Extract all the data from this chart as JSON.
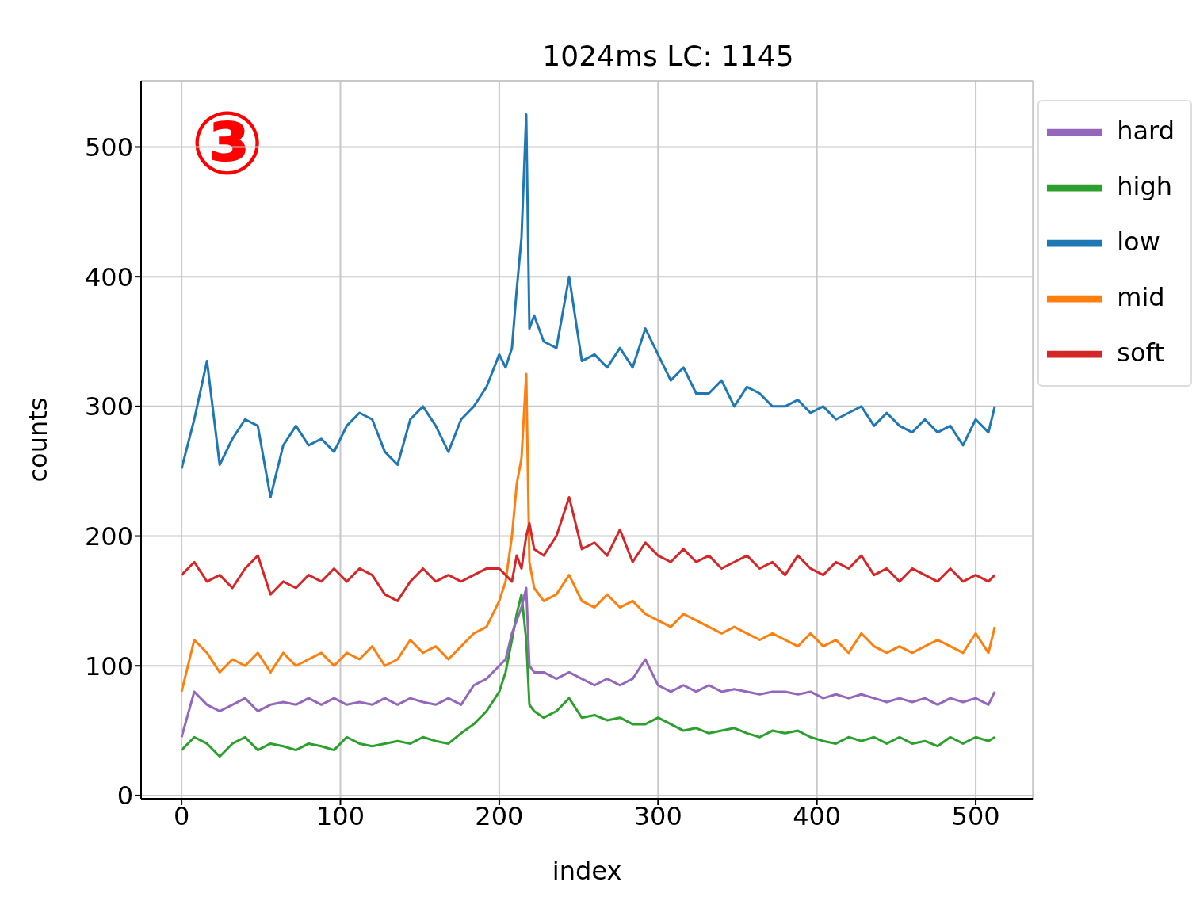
{
  "chart_data": {
    "type": "line",
    "title": "1024ms LC: 1145",
    "xlabel": "index",
    "ylabel": "counts",
    "annotations": [
      "③"
    ],
    "x": [
      0,
      8,
      16,
      24,
      32,
      40,
      48,
      56,
      64,
      72,
      80,
      88,
      96,
      104,
      112,
      120,
      128,
      136,
      144,
      152,
      160,
      168,
      176,
      184,
      192,
      200,
      204,
      208,
      211,
      214,
      217,
      219,
      222,
      228,
      236,
      244,
      252,
      260,
      268,
      276,
      284,
      292,
      300,
      308,
      316,
      324,
      332,
      340,
      348,
      356,
      364,
      372,
      380,
      388,
      396,
      404,
      412,
      420,
      428,
      436,
      444,
      452,
      460,
      468,
      476,
      484,
      492,
      500,
      508,
      512
    ],
    "xlim": [
      -25.5,
      536
    ],
    "xticks": [
      0,
      100,
      200,
      300,
      400,
      500
    ],
    "ylim": [
      -2.5,
      551
    ],
    "yticks": [
      0,
      100,
      200,
      300,
      400,
      500
    ],
    "grid": true,
    "legend": "top right",
    "marker": "none",
    "line_style": "solid",
    "series": [
      {
        "name": "low",
        "color": "#1f77b4",
        "values": [
          252,
          290,
          335,
          255,
          275,
          290,
          285,
          230,
          270,
          285,
          270,
          275,
          265,
          285,
          295,
          290,
          265,
          255,
          290,
          300,
          285,
          265,
          290,
          300,
          315,
          340,
          330,
          345,
          390,
          430,
          525,
          360,
          370,
          350,
          345,
          400,
          335,
          340,
          330,
          345,
          330,
          360,
          340,
          320,
          330,
          310,
          310,
          320,
          300,
          315,
          310,
          300,
          300,
          305,
          295,
          300,
          290,
          295,
          300,
          285,
          295,
          285,
          280,
          290,
          280,
          285,
          270,
          290,
          280,
          300
        ]
      },
      {
        "name": "mid",
        "color": "#ff7f0e",
        "values": [
          80,
          120,
          110,
          95,
          105,
          100,
          110,
          95,
          110,
          100,
          105,
          110,
          100,
          110,
          105,
          115,
          100,
          105,
          120,
          110,
          115,
          105,
          115,
          125,
          130,
          150,
          165,
          200,
          240,
          260,
          325,
          180,
          160,
          150,
          155,
          170,
          150,
          145,
          155,
          145,
          150,
          140,
          135,
          130,
          140,
          135,
          130,
          125,
          130,
          125,
          120,
          125,
          120,
          115,
          125,
          115,
          120,
          110,
          125,
          115,
          110,
          115,
          110,
          115,
          120,
          115,
          110,
          125,
          110,
          130
        ]
      },
      {
        "name": "high",
        "color": "#2ca02c",
        "values": [
          35,
          45,
          40,
          30,
          40,
          45,
          35,
          40,
          38,
          35,
          40,
          38,
          35,
          45,
          40,
          38,
          40,
          42,
          40,
          45,
          42,
          40,
          48,
          55,
          65,
          80,
          95,
          120,
          140,
          155,
          120,
          70,
          65,
          60,
          65,
          75,
          60,
          62,
          58,
          60,
          55,
          55,
          60,
          55,
          50,
          52,
          48,
          50,
          52,
          48,
          45,
          50,
          48,
          50,
          45,
          42,
          40,
          45,
          42,
          45,
          40,
          45,
          40,
          42,
          38,
          45,
          40,
          45,
          42,
          45
        ]
      },
      {
        "name": "soft",
        "color": "#d62728",
        "values": [
          170,
          180,
          165,
          170,
          160,
          175,
          185,
          155,
          165,
          160,
          170,
          165,
          175,
          165,
          175,
          170,
          155,
          150,
          165,
          175,
          165,
          170,
          165,
          170,
          175,
          175,
          170,
          165,
          185,
          175,
          200,
          210,
          190,
          185,
          200,
          230,
          190,
          195,
          185,
          205,
          180,
          195,
          185,
          180,
          190,
          180,
          185,
          175,
          180,
          185,
          175,
          180,
          170,
          185,
          175,
          170,
          180,
          175,
          185,
          170,
          175,
          165,
          175,
          170,
          165,
          175,
          165,
          170,
          165,
          170
        ]
      },
      {
        "name": "hard",
        "color": "#9467bd",
        "values": [
          45,
          80,
          70,
          65,
          70,
          75,
          65,
          70,
          72,
          70,
          75,
          70,
          75,
          70,
          72,
          70,
          75,
          70,
          75,
          72,
          70,
          75,
          70,
          85,
          90,
          100,
          105,
          125,
          135,
          145,
          160,
          100,
          95,
          95,
          90,
          95,
          90,
          85,
          90,
          85,
          90,
          105,
          85,
          80,
          85,
          80,
          85,
          80,
          82,
          80,
          78,
          80,
          80,
          78,
          80,
          75,
          78,
          75,
          78,
          75,
          72,
          75,
          72,
          75,
          70,
          75,
          72,
          75,
          70,
          80
        ]
      }
    ]
  }
}
